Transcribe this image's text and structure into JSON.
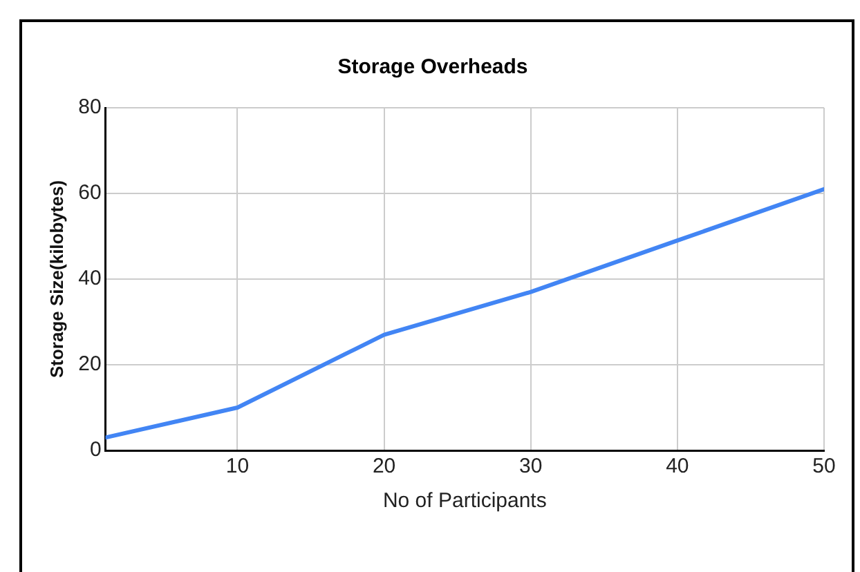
{
  "chart_data": {
    "type": "line",
    "title": "Storage Overheads",
    "xlabel": "No of Participants",
    "ylabel": "Storage Size(kilobytes)",
    "x": [
      1,
      10,
      20,
      30,
      40,
      50
    ],
    "series": [
      {
        "color": "#4285f4",
        "values": [
          3,
          10,
          27,
          37,
          49,
          61
        ]
      }
    ],
    "xlim": [
      1,
      50
    ],
    "xticks": [
      10,
      20,
      30,
      40,
      50
    ],
    "ylim": [
      0,
      80
    ],
    "yticks": [
      0,
      20,
      40,
      60,
      80
    ],
    "grid": true,
    "legend": false,
    "marker": "none",
    "line_style": "solid"
  }
}
